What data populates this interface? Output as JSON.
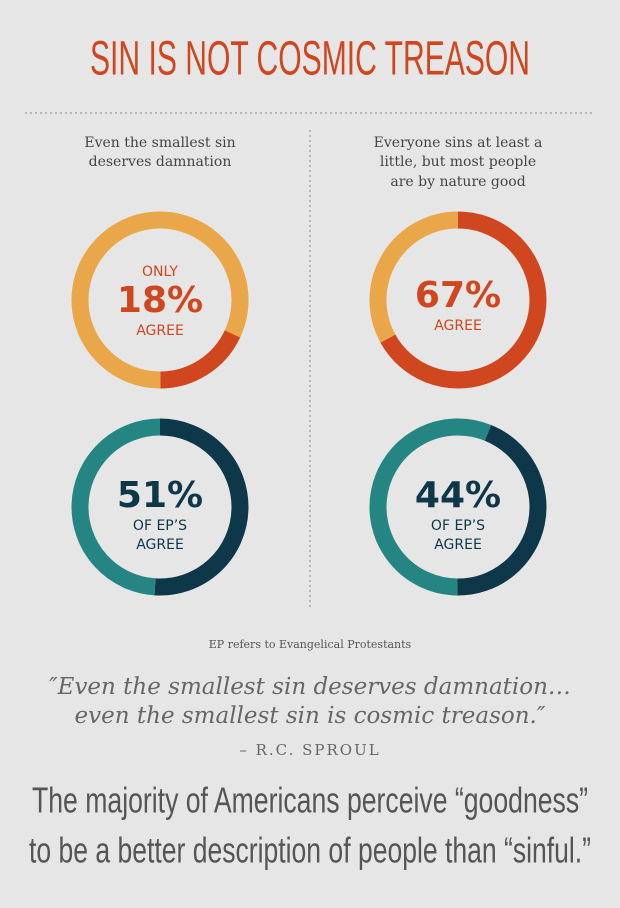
{
  "title": "SIN IS NOT COSMIC TREASON",
  "columns": [
    {
      "heading": [
        "Even the smallest sin",
        "deserves damnation"
      ]
    },
    {
      "heading": [
        "Everyone sins at least a",
        "little, but most people",
        "are by nature good"
      ]
    }
  ],
  "chart_data": [
    {
      "type": "pie",
      "donut": true,
      "values": [
        18,
        82
      ],
      "value_labels": [
        "18%",
        null
      ],
      "colors": [
        "#d0461e",
        "#eaa74a"
      ],
      "label_above": "ONLY",
      "label_below": [
        "AGREE"
      ]
    },
    {
      "type": "pie",
      "donut": true,
      "values": [
        67,
        33
      ],
      "value_labels": [
        "67%",
        null
      ],
      "colors": [
        "#d0461e",
        "#eaa74a"
      ],
      "label_below": [
        "AGREE"
      ]
    },
    {
      "type": "pie",
      "donut": true,
      "values": [
        51,
        49
      ],
      "value_labels": [
        "51%",
        null
      ],
      "colors": [
        "#0e3749",
        "#258582"
      ],
      "label_below": [
        "OF EP’S",
        "AGREE"
      ]
    },
    {
      "type": "pie",
      "donut": true,
      "values": [
        44,
        56
      ],
      "value_labels": [
        "44%",
        null
      ],
      "colors": [
        "#0e3749",
        "#258582"
      ],
      "label_below": [
        "OF EP’S",
        "AGREE"
      ]
    }
  ],
  "footnote": "EP refers to Evangelical Protestants",
  "quote": [
    "″Even the smallest sin deserves damnation…",
    "even the smallest sin is cosmic treason.″"
  ],
  "attribution": "– R.C. SPROUL",
  "conclusion": [
    "The majority of Americans perceive “goodness”",
    "to be a better description of people than “sinful.”"
  ]
}
